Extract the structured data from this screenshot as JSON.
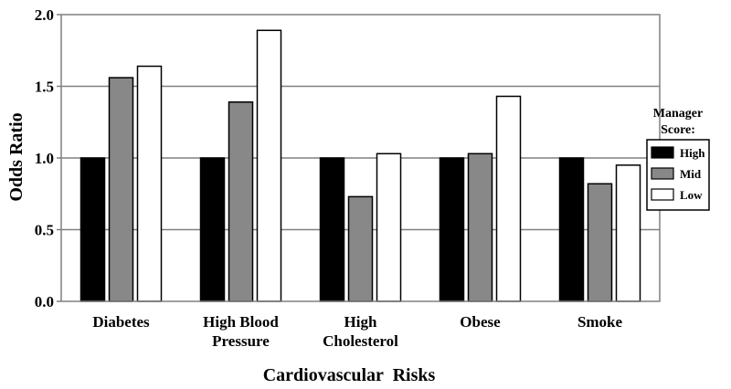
{
  "chart_data": {
    "type": "bar",
    "title": "",
    "xlabel": "Cardiovascular  Risks",
    "ylabel": "Odds  Ratio",
    "ylim": [
      0,
      2
    ],
    "yticks": [
      "0.0",
      "0.5",
      "1.0",
      "1.5",
      "2.0"
    ],
    "ytick_values": [
      0,
      0.5,
      1,
      1.5,
      2
    ],
    "grid": true,
    "categories": [
      [
        "Diabetes"
      ],
      [
        "High Blood",
        "Pressure"
      ],
      [
        "High",
        "Cholesterol"
      ],
      [
        "Obese"
      ],
      [
        "Smoke"
      ]
    ],
    "series": [
      {
        "name": "High",
        "color": "#000000",
        "values": [
          1.0,
          1.0,
          1.0,
          1.0,
          1.0
        ]
      },
      {
        "name": "Mid",
        "color": "#888888",
        "values": [
          1.56,
          1.39,
          0.73,
          1.03,
          0.82
        ]
      },
      {
        "name": "Low",
        "color": "#ffffff",
        "values": [
          1.64,
          1.89,
          1.03,
          1.43,
          0.95
        ]
      }
    ],
    "legend": {
      "title_lines": [
        "Manager",
        "Score:"
      ],
      "placement": "right"
    }
  }
}
